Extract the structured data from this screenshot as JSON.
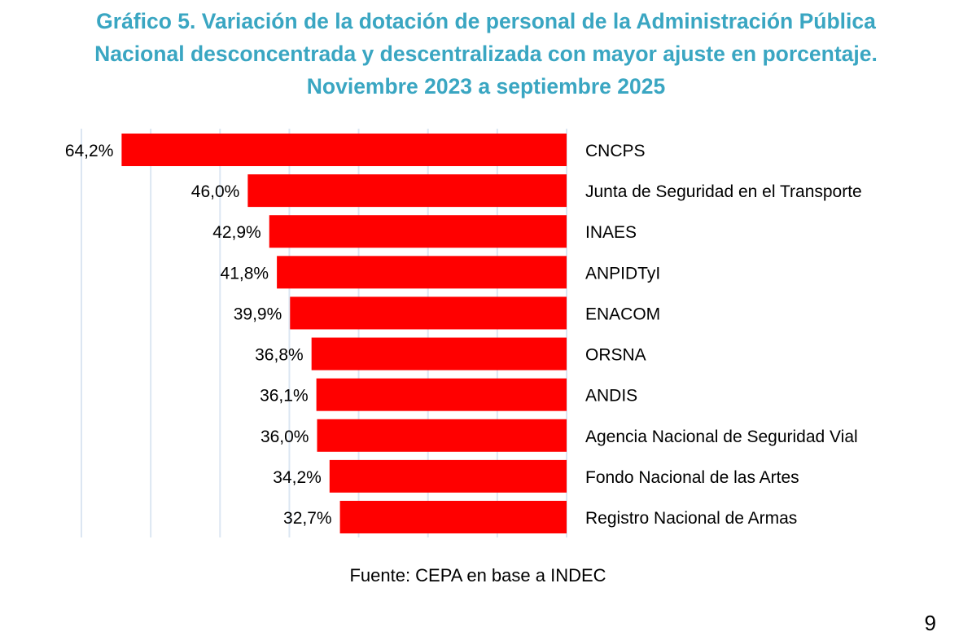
{
  "chart_data": {
    "type": "bar",
    "orientation": "horizontal",
    "title_lines": [
      "Gráfico 5. Variación de la dotación de personal de la Administración Pública",
      "Nacional desconcentrada y descentralizada con mayor ajuste en porcentaje.",
      "Noviembre 2023 a septiembre 2025"
    ],
    "categories": [
      "CNCPS",
      "Junta de Seguridad en el Transporte",
      "INAES",
      "ANPIDTyI",
      "ENACOM",
      "ORSNA",
      "ANDIS",
      "Agencia Nacional de Seguridad Vial",
      "Fondo Nacional de las Artes",
      "Registro Nacional de Armas"
    ],
    "values": [
      64.2,
      46.0,
      42.9,
      41.8,
      39.9,
      36.8,
      36.1,
      36.0,
      34.2,
      32.7
    ],
    "data_labels": [
      "64,2%",
      "46,0%",
      "42,9%",
      "41,8%",
      "39,9%",
      "36,8%",
      "36,1%",
      "36,0%",
      "34,2%",
      "32,7%"
    ],
    "xlim": [
      0,
      70
    ],
    "grid_step": 10,
    "grid": true,
    "bar_color": "#ff0000",
    "title_color": "#3aa6c2",
    "grid_color": "#dce6f2"
  },
  "source": "Fuente: CEPA en base a INDEC",
  "page_number": "9"
}
